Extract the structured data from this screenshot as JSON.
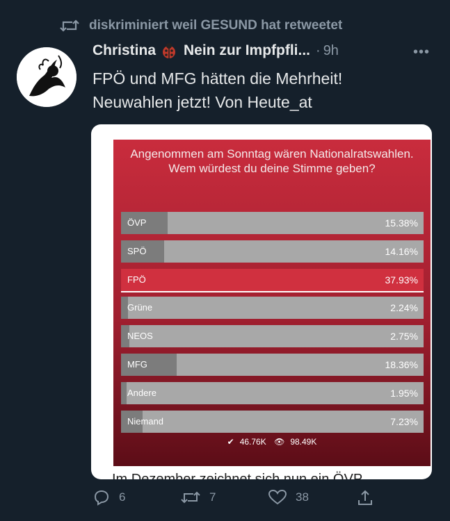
{
  "retweet": {
    "text": "diskriminiert weil GESUND hat retweetet"
  },
  "author": {
    "name": "Christina",
    "handle_tail": "Nein zur Impfpfli...",
    "time": "9h",
    "more": "•••"
  },
  "tweet": {
    "line1": "FPÖ und MFG hätten die Mehrheit!",
    "line2": "Neuwahlen jetzt! Von Heute_at"
  },
  "poll": {
    "question": "Angenommen am Sonntag wären Nationalratswahlen. Wem würdest du deine Stimme geben?",
    "options": [
      {
        "label": "ÖVP",
        "pct": "15.38%",
        "value": 15.38
      },
      {
        "label": "SPÖ",
        "pct": "14.16%",
        "value": 14.16
      },
      {
        "label": "FPÖ",
        "pct": "37.93%",
        "value": 37.93,
        "selected": true
      },
      {
        "label": "Grüne",
        "pct": "2.24%",
        "value": 2.24
      },
      {
        "label": "NEOS",
        "pct": "2.75%",
        "value": 2.75
      },
      {
        "label": "MFG",
        "pct": "18.36%",
        "value": 18.36
      },
      {
        "label": "Andere",
        "pct": "1.95%",
        "value": 1.95
      },
      {
        "label": "Niemand",
        "pct": "7.23%",
        "value": 7.23
      }
    ],
    "votes": "46.76K",
    "views": "98.49K"
  },
  "card_tail_text": "Im Dezember zeichnet sich nun ein ÖVP",
  "actions": {
    "replies": "6",
    "retweets": "7",
    "likes": "38"
  },
  "colors": {
    "background": "#15202b",
    "poll_red": "#c92c3d",
    "muted": "#8b98a5"
  }
}
